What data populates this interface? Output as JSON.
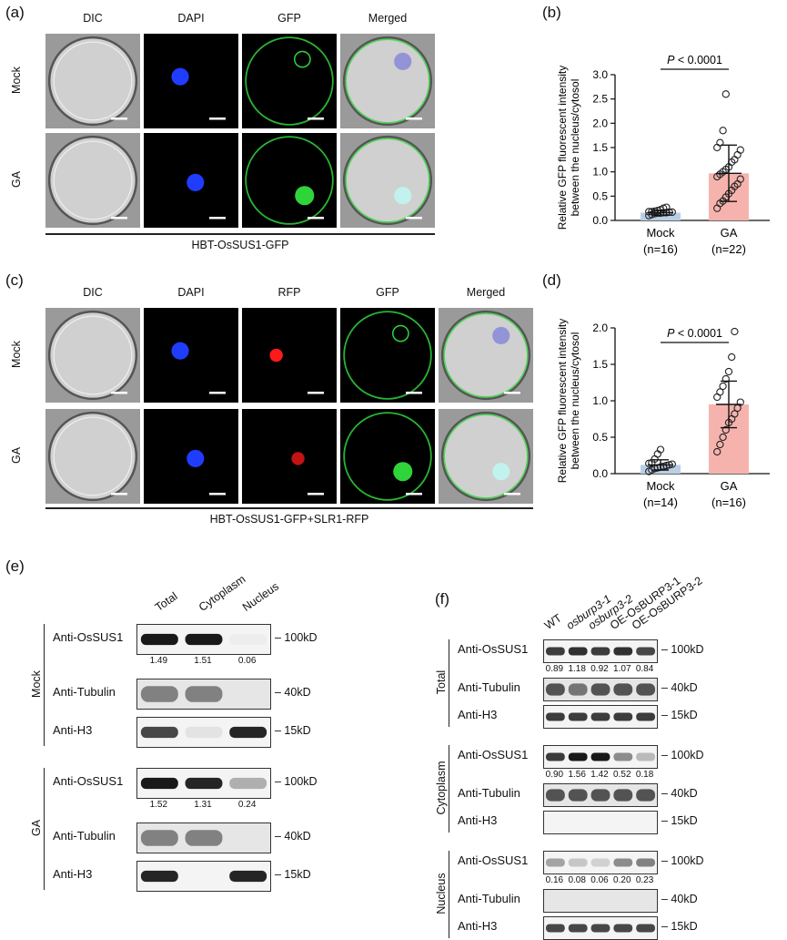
{
  "panels": {
    "a": "(a)",
    "b": "(b)",
    "c": "(c)",
    "d": "(d)",
    "e": "(e)",
    "f": "(f)"
  },
  "a": {
    "columns": [
      "DIC",
      "DAPI",
      "GFP",
      "Merged"
    ],
    "rows": [
      "Mock",
      "GA"
    ],
    "caption": "HBT-OsSUS1-GFP"
  },
  "c": {
    "columns": [
      "DIC",
      "DAPI",
      "RFP",
      "GFP",
      "Merged"
    ],
    "rows": [
      "Mock",
      "GA"
    ],
    "caption": "HBT-OsSUS1-GFP+SLR1-RFP"
  },
  "colors": {
    "dapi": "#1f3cff",
    "gfp": "#2fd43a",
    "rfp": "#ff1a1a",
    "mock_bar": "#b9cfe6",
    "ga_bar": "#f6b3ad"
  },
  "chart_data": [
    {
      "type": "bar",
      "panel": "b",
      "ylabel": "Relative GFP fluorescent intensity between the nucleus/cytosol",
      "ylabel_lines": [
        "Relative GFP fluorescent intensity",
        "between the nucleus/cytosol"
      ],
      "ylim": [
        0,
        3.0
      ],
      "yticks": [
        "0.0",
        "0.5",
        "1.0",
        "1.5",
        "2.0",
        "2.5",
        "3.0"
      ],
      "categories": [
        "Mock",
        "GA"
      ],
      "category_n": [
        "(n=16)",
        "(n=22)"
      ],
      "means": [
        0.16,
        0.97
      ],
      "sd": [
        0.05,
        0.58
      ],
      "annotation": "P < 0.0001",
      "points": [
        [
          0.1,
          0.12,
          0.14,
          0.15,
          0.15,
          0.16,
          0.16,
          0.17,
          0.17,
          0.18,
          0.18,
          0.19,
          0.2,
          0.22,
          0.25,
          0.27
        ],
        [
          0.25,
          0.35,
          0.4,
          0.48,
          0.55,
          0.62,
          0.7,
          0.75,
          0.85,
          0.9,
          0.95,
          1.0,
          1.05,
          1.1,
          1.2,
          1.25,
          1.35,
          1.45,
          1.5,
          1.6,
          1.85,
          2.6
        ]
      ]
    },
    {
      "type": "bar",
      "panel": "d",
      "ylabel": "Relative GFP fluorescent intensity between the nucleus/cytosol",
      "ylabel_lines": [
        "Relative GFP fluorescent intensity",
        "between the nucleus/cytosol"
      ],
      "ylim": [
        0,
        2.0
      ],
      "yticks": [
        "0.0",
        "0.5",
        "1.0",
        "1.5",
        "2.0"
      ],
      "categories": [
        "Mock",
        "GA"
      ],
      "category_n": [
        "(n=14)",
        "(n=16)"
      ],
      "means": [
        0.12,
        0.95
      ],
      "sd": [
        0.07,
        0.32
      ],
      "annotation": "P < 0.0001",
      "points": [
        [
          0.03,
          0.05,
          0.07,
          0.08,
          0.09,
          0.1,
          0.11,
          0.12,
          0.13,
          0.14,
          0.15,
          0.2,
          0.27,
          0.33
        ],
        [
          0.3,
          0.4,
          0.5,
          0.6,
          0.7,
          0.75,
          0.82,
          0.9,
          0.98,
          1.05,
          1.12,
          1.2,
          1.3,
          1.4,
          1.6,
          1.95
        ]
      ]
    }
  ],
  "e": {
    "columns": [
      "Total",
      "Cytoplasm",
      "Nucleus"
    ],
    "groups": [
      {
        "label": "Mock",
        "blots": [
          {
            "antibody": "Anti-OsSUS1",
            "kd": "– 100kD",
            "bands": [
              1.0,
              1.0,
              0.08
            ],
            "quant": [
              "1.49",
              "1.51",
              "0.06"
            ]
          },
          {
            "antibody": "Anti-Tubulin",
            "kd": "– 40kD",
            "bands": [
              0.55,
              0.55,
              0.0
            ]
          },
          {
            "antibody": "Anti-H3",
            "kd": "– 15kD",
            "bands": [
              0.8,
              0.12,
              0.95
            ]
          }
        ]
      },
      {
        "label": "GA",
        "blots": [
          {
            "antibody": "Anti-OsSUS1",
            "kd": "– 100kD",
            "bands": [
              1.0,
              0.95,
              0.35
            ],
            "quant": [
              "1.52",
              "1.31",
              "0.24"
            ]
          },
          {
            "antibody": "Anti-Tubulin",
            "kd": "– 40kD",
            "bands": [
              0.55,
              0.55,
              0.0
            ]
          },
          {
            "antibody": "Anti-H3",
            "kd": "– 15kD",
            "bands": [
              0.95,
              0.0,
              0.95
            ]
          }
        ]
      }
    ]
  },
  "f": {
    "columns": [
      "WT",
      "osburp3-1",
      "osburp3-2",
      "OE-OsBURP3-1",
      "OE-OsBURP3-2"
    ],
    "groups": [
      {
        "label": "Total",
        "blots": [
          {
            "antibody": "Anti-OsSUS1",
            "kd": "– 100kD",
            "bands": [
              0.85,
              0.9,
              0.85,
              0.9,
              0.8
            ],
            "quant": [
              "0.89",
              "1.18",
              "0.92",
              "1.07",
              "0.84"
            ]
          },
          {
            "antibody": "Anti-Tubulin",
            "kd": "– 40kD",
            "bands": [
              0.75,
              0.6,
              0.75,
              0.75,
              0.75
            ]
          },
          {
            "antibody": "Anti-H3",
            "kd": "– 15kD",
            "bands": [
              0.85,
              0.85,
              0.85,
              0.85,
              0.85
            ]
          }
        ]
      },
      {
        "label": "Cytoplasm",
        "blots": [
          {
            "antibody": "Anti-OsSUS1",
            "kd": "– 100kD",
            "bands": [
              0.85,
              1.0,
              1.0,
              0.5,
              0.3
            ],
            "quant": [
              "0.90",
              "1.56",
              "1.42",
              "0.52",
              "0.18"
            ]
          },
          {
            "antibody": "Anti-Tubulin",
            "kd": "– 40kD",
            "bands": [
              0.75,
              0.75,
              0.75,
              0.75,
              0.75
            ]
          },
          {
            "antibody": "Anti-H3",
            "kd": "– 15kD",
            "bands": [
              0,
              0,
              0,
              0,
              0
            ]
          }
        ]
      },
      {
        "label": "Nucleus",
        "blots": [
          {
            "antibody": "Anti-OsSUS1",
            "kd": "– 100kD",
            "bands": [
              0.4,
              0.25,
              0.2,
              0.5,
              0.55
            ],
            "quant": [
              "0.16",
              "0.08",
              "0.06",
              "0.20",
              "0.23"
            ]
          },
          {
            "antibody": "Anti-Tubulin",
            "kd": "– 40kD",
            "bands": [
              0,
              0,
              0,
              0,
              0
            ]
          },
          {
            "antibody": "Anti-H3",
            "kd": "– 15kD",
            "bands": [
              0.8,
              0.8,
              0.8,
              0.8,
              0.8
            ]
          }
        ]
      }
    ]
  }
}
